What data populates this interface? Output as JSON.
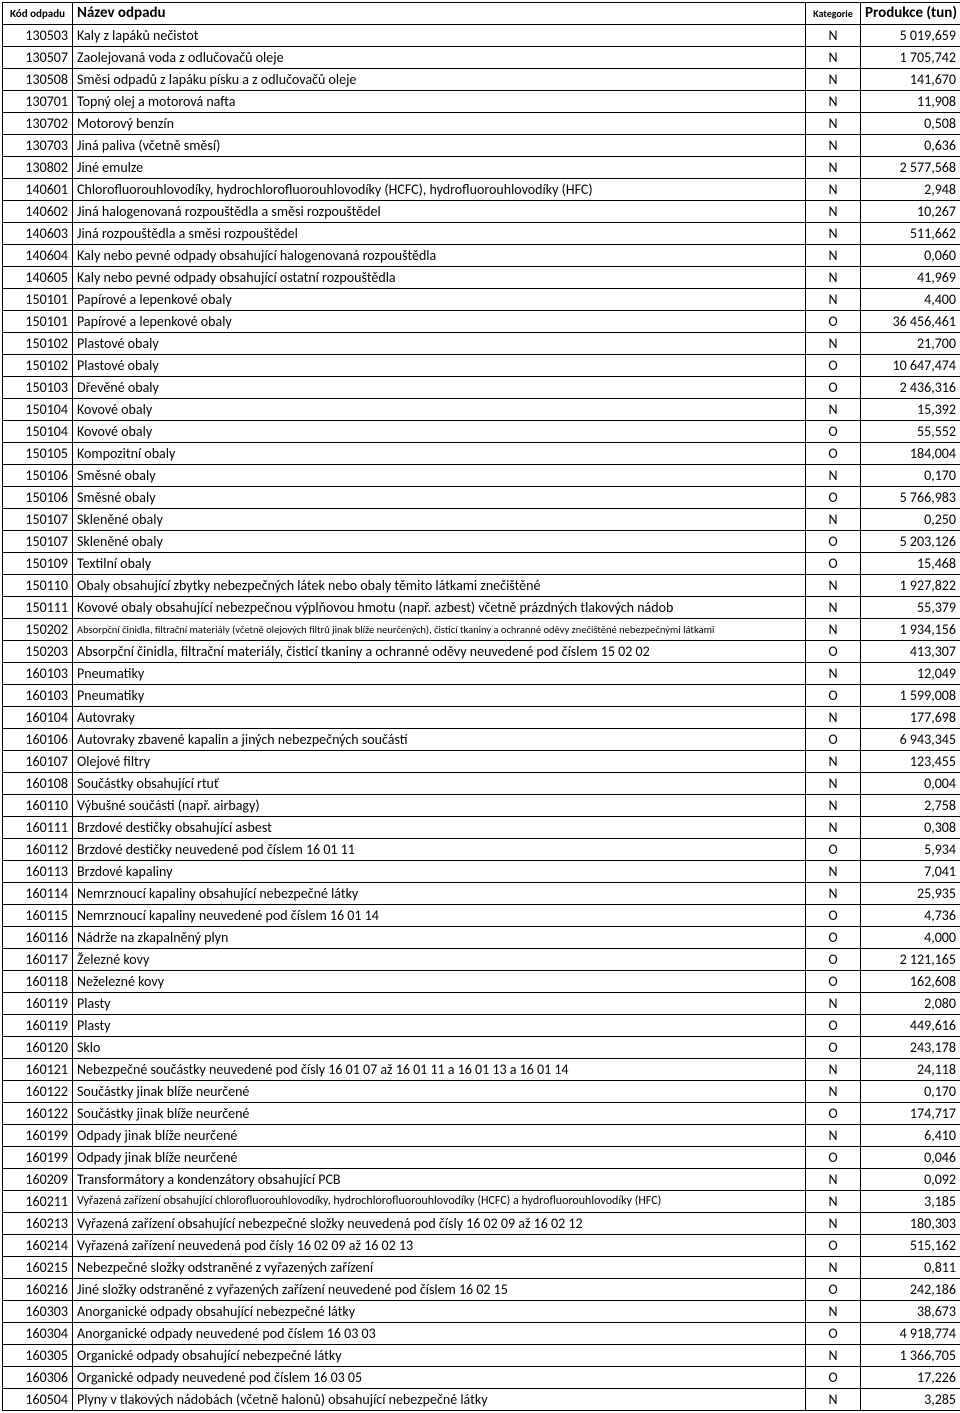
{
  "headers": {
    "code": "Kód odpadu",
    "name": "Název odpadu",
    "cat": "Kategorie",
    "prod": "Produkce (tun)"
  },
  "rows": [
    {
      "code": "130503",
      "name": "Kaly z lapáků nečistot",
      "cat": "N",
      "prod": "5 019,659"
    },
    {
      "code": "130507",
      "name": "Zaolejovaná voda z odlučovačů oleje",
      "cat": "N",
      "prod": "1 705,742"
    },
    {
      "code": "130508",
      "name": "Směsi odpadů z lapáku písku a z odlučovačů oleje",
      "cat": "N",
      "prod": "141,670"
    },
    {
      "code": "130701",
      "name": "Topný olej a motorová nafta",
      "cat": "N",
      "prod": "11,908"
    },
    {
      "code": "130702",
      "name": "Motorový benzín",
      "cat": "N",
      "prod": "0,508"
    },
    {
      "code": "130703",
      "name": "Jiná paliva (včetně směsí)",
      "cat": "N",
      "prod": "0,636"
    },
    {
      "code": "130802",
      "name": "Jiné emulze",
      "cat": "N",
      "prod": "2 577,568"
    },
    {
      "code": "140601",
      "name": "Chlorofluorouhlovodíky, hydrochlorofluorouhlovodíky (HCFC), hydrofluorouhlovodíky (HFC)",
      "cat": "N",
      "prod": "2,948"
    },
    {
      "code": "140602",
      "name": "Jiná halogenovaná rozpouštědla a směsi rozpouštědel",
      "cat": "N",
      "prod": "10,267"
    },
    {
      "code": "140603",
      "name": "Jiná rozpouštědla a směsi rozpouštědel",
      "cat": "N",
      "prod": "511,662"
    },
    {
      "code": "140604",
      "name": "Kaly nebo pevné odpady obsahující halogenovaná rozpouštědla",
      "cat": "N",
      "prod": "0,060"
    },
    {
      "code": "140605",
      "name": "Kaly nebo pevné odpady obsahující ostatní rozpouštědla",
      "cat": "N",
      "prod": "41,969"
    },
    {
      "code": "150101",
      "name": "Papírové a lepenkové obaly",
      "cat": "N",
      "prod": "4,400"
    },
    {
      "code": "150101",
      "name": "Papírové a lepenkové obaly",
      "cat": "O",
      "prod": "36 456,461"
    },
    {
      "code": "150102",
      "name": "Plastové obaly",
      "cat": "N",
      "prod": "21,700"
    },
    {
      "code": "150102",
      "name": "Plastové obaly",
      "cat": "O",
      "prod": "10 647,474"
    },
    {
      "code": "150103",
      "name": "Dřevěné obaly",
      "cat": "O",
      "prod": "2 436,316"
    },
    {
      "code": "150104",
      "name": "Kovové obaly",
      "cat": "N",
      "prod": "15,392"
    },
    {
      "code": "150104",
      "name": "Kovové obaly",
      "cat": "O",
      "prod": "55,552"
    },
    {
      "code": "150105",
      "name": "Kompozitní obaly",
      "cat": "O",
      "prod": "184,004"
    },
    {
      "code": "150106",
      "name": "Směsné obaly",
      "cat": "N",
      "prod": "0,170"
    },
    {
      "code": "150106",
      "name": "Směsné obaly",
      "cat": "O",
      "prod": "5 766,983"
    },
    {
      "code": "150107",
      "name": "Skleněné obaly",
      "cat": "N",
      "prod": "0,250"
    },
    {
      "code": "150107",
      "name": "Skleněné obaly",
      "cat": "O",
      "prod": "5 203,126"
    },
    {
      "code": "150109",
      "name": "Textilní obaly",
      "cat": "O",
      "prod": "15,468"
    },
    {
      "code": "150110",
      "name": "Obaly obsahující zbytky nebezpečných látek nebo obaly těmito látkami znečištěné",
      "cat": "N",
      "prod": "1 927,822"
    },
    {
      "code": "150111",
      "name": "Kovové obaly obsahující nebezpečnou výplňovou hmotu (např. azbest) včetně prázdných tlakových nádob",
      "cat": "N",
      "prod": "55,379"
    },
    {
      "code": "150202",
      "name": "Absorpční činidla, filtrační materiály (včetně olejových filtrů jinak blíže neurčených), čisticí tkaniny a ochranné oděvy znečištěné nebezpečnými látkami",
      "cat": "N",
      "prod": "1 934,156",
      "cls": "small"
    },
    {
      "code": "150203",
      "name": "Absorpční činidla, filtrační materiály, čisticí tkaniny a ochranné oděvy neuvedené pod číslem 15 02 02",
      "cat": "O",
      "prod": "413,307"
    },
    {
      "code": "160103",
      "name": "Pneumatiky",
      "cat": "N",
      "prod": "12,049"
    },
    {
      "code": "160103",
      "name": "Pneumatiky",
      "cat": "O",
      "prod": "1 599,008"
    },
    {
      "code": "160104",
      "name": "Autovraky",
      "cat": "N",
      "prod": "177,698"
    },
    {
      "code": "160106",
      "name": "Autovraky zbavené kapalin a jiných nebezpečných součástí",
      "cat": "O",
      "prod": "6 943,345"
    },
    {
      "code": "160107",
      "name": "Olejové filtry",
      "cat": "N",
      "prod": "123,455"
    },
    {
      "code": "160108",
      "name": "Součástky obsahující rtuť",
      "cat": "N",
      "prod": "0,004"
    },
    {
      "code": "160110",
      "name": "Výbušné součásti (např. airbagy)",
      "cat": "N",
      "prod": "2,758"
    },
    {
      "code": "160111",
      "name": "Brzdové destičky obsahující asbest",
      "cat": "N",
      "prod": "0,308"
    },
    {
      "code": "160112",
      "name": "Brzdové destičky neuvedené pod číslem 16 01 11",
      "cat": "O",
      "prod": "5,934"
    },
    {
      "code": "160113",
      "name": "Brzdové kapaliny",
      "cat": "N",
      "prod": "7,041"
    },
    {
      "code": "160114",
      "name": "Nemrznoucí kapaliny obsahující nebezpečné látky",
      "cat": "N",
      "prod": "25,935"
    },
    {
      "code": "160115",
      "name": "Nemrznoucí kapaliny neuvedené pod číslem 16 01 14",
      "cat": "O",
      "prod": "4,736"
    },
    {
      "code": "160116",
      "name": "Nádrže na zkapalněný plyn",
      "cat": "O",
      "prod": "4,000"
    },
    {
      "code": "160117",
      "name": "Železné kovy",
      "cat": "O",
      "prod": "2 121,165"
    },
    {
      "code": "160118",
      "name": "Neželezné kovy",
      "cat": "O",
      "prod": "162,608"
    },
    {
      "code": "160119",
      "name": "Plasty",
      "cat": "N",
      "prod": "2,080"
    },
    {
      "code": "160119",
      "name": "Plasty",
      "cat": "O",
      "prod": "449,616"
    },
    {
      "code": "160120",
      "name": "Sklo",
      "cat": "O",
      "prod": "243,178"
    },
    {
      "code": "160121",
      "name": "Nebezpečné součástky neuvedené pod čísly 16 01 07 až 16 01 11 a 16 01 13 a 16 01 14",
      "cat": "N",
      "prod": "24,118"
    },
    {
      "code": "160122",
      "name": "Součástky jinak blíže neurčené",
      "cat": "N",
      "prod": "0,170"
    },
    {
      "code": "160122",
      "name": "Součástky jinak blíže neurčené",
      "cat": "O",
      "prod": "174,717"
    },
    {
      "code": "160199",
      "name": "Odpady jinak blíže neurčené",
      "cat": "N",
      "prod": "6,410"
    },
    {
      "code": "160199",
      "name": "Odpady jinak blíže neurčené",
      "cat": "O",
      "prod": "0,046"
    },
    {
      "code": "160209",
      "name": "Transformátory a kondenzátory obsahující PCB",
      "cat": "N",
      "prod": "0,092"
    },
    {
      "code": "160211",
      "name": "Vyřazená zařízení obsahující chlorofluorouhlovodíky, hydrochlorofluorouhlovodíky (HCFC) a hydrofluorouhlovodíky (HFC)",
      "cat": "N",
      "prod": "3,185",
      "cls": "mid"
    },
    {
      "code": "160213",
      "name": "Vyřazená zařízení obsahující nebezpečné složky neuvedená pod čísly 16 02 09 až 16 02 12",
      "cat": "N",
      "prod": "180,303"
    },
    {
      "code": "160214",
      "name": "Vyřazená zařízení neuvedená pod čísly 16 02 09 až 16 02 13",
      "cat": "O",
      "prod": "515,162"
    },
    {
      "code": "160215",
      "name": "Nebezpečné složky odstraněné z vyřazených zařízení",
      "cat": "N",
      "prod": "0,811"
    },
    {
      "code": "160216",
      "name": "Jiné složky odstraněné z vyřazených zařízení neuvedené pod číslem 16 02 15",
      "cat": "O",
      "prod": "242,186"
    },
    {
      "code": "160303",
      "name": "Anorganické odpady obsahující nebezpečné látky",
      "cat": "N",
      "prod": "38,673"
    },
    {
      "code": "160304",
      "name": "Anorganické odpady neuvedené pod číslem 16 03 03",
      "cat": "O",
      "prod": "4 918,774"
    },
    {
      "code": "160305",
      "name": "Organické odpady obsahující nebezpečné látky",
      "cat": "N",
      "prod": "1 366,705"
    },
    {
      "code": "160306",
      "name": "Organické odpady neuvedené pod číslem 16 03 05",
      "cat": "O",
      "prod": "17,226"
    },
    {
      "code": "160504",
      "name": "Plyny v tlakových nádobách (včetně halonů) obsahující nebezpečné látky",
      "cat": "N",
      "prod": "3,285"
    }
  ]
}
